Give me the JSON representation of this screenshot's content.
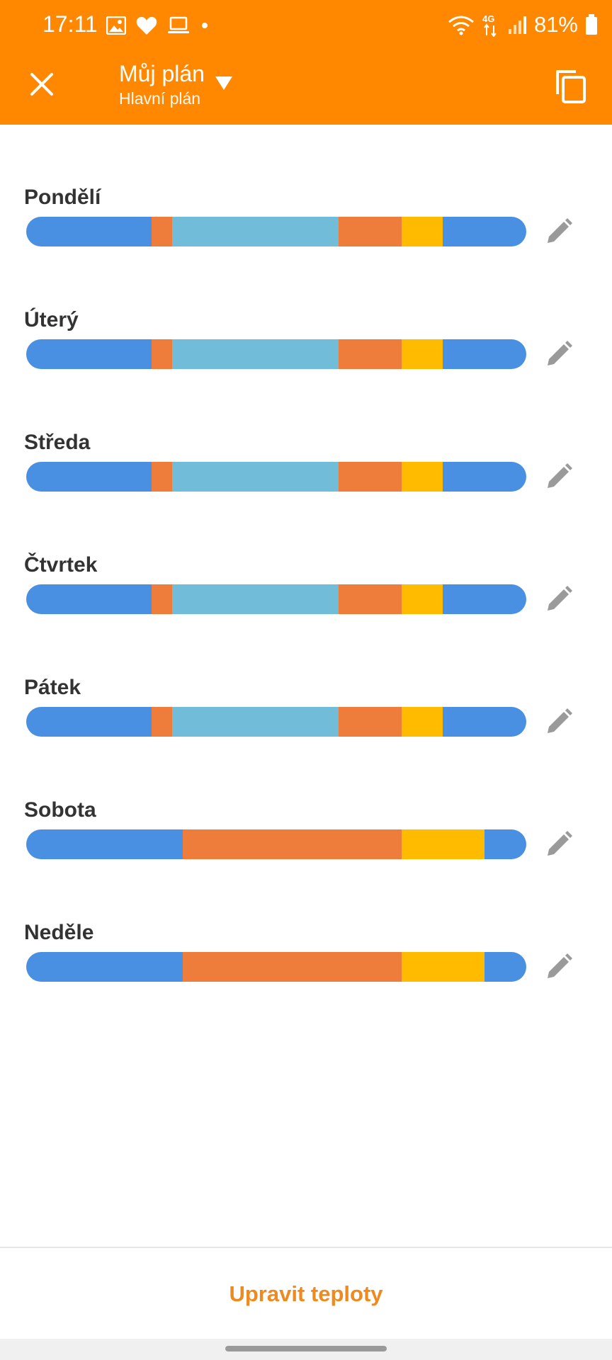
{
  "status_bar": {
    "time": "17:11",
    "battery": "81%",
    "network_label": "4G",
    "notification_icons": [
      "image-icon",
      "heart-icon",
      "laptop-icon",
      "dot-icon"
    ]
  },
  "header": {
    "title": "Můj plán",
    "subtitle": "Hlavní plán",
    "close_icon": "close-icon",
    "copy_icon": "copy-icon"
  },
  "colors": {
    "header": "#ff8800",
    "blue": "#4a90e2",
    "light_blue": "#71bcd9",
    "orange": "#ee7d3b",
    "yellow": "#ffbb00",
    "accent_text": "#ef8a1e",
    "edit_icon": "#9a9a9a"
  },
  "days": [
    {
      "label": "Pondělí",
      "segments": [
        {
          "color": "#4a90e2",
          "start": 0.0,
          "end": 0.25
        },
        {
          "color": "#ee7d3b",
          "start": 0.25,
          "end": 0.2917
        },
        {
          "color": "#71bcd9",
          "start": 0.2917,
          "end": 0.625
        },
        {
          "color": "#ee7d3b",
          "start": 0.625,
          "end": 0.75
        },
        {
          "color": "#ffbb00",
          "start": 0.75,
          "end": 0.8333
        },
        {
          "color": "#4a90e2",
          "start": 0.8333,
          "end": 1.0
        }
      ]
    },
    {
      "label": "Úterý",
      "segments": [
        {
          "color": "#4a90e2",
          "start": 0.0,
          "end": 0.25
        },
        {
          "color": "#ee7d3b",
          "start": 0.25,
          "end": 0.2917
        },
        {
          "color": "#71bcd9",
          "start": 0.2917,
          "end": 0.625
        },
        {
          "color": "#ee7d3b",
          "start": 0.625,
          "end": 0.75
        },
        {
          "color": "#ffbb00",
          "start": 0.75,
          "end": 0.8333
        },
        {
          "color": "#4a90e2",
          "start": 0.8333,
          "end": 1.0
        }
      ]
    },
    {
      "label": "Středa",
      "segments": [
        {
          "color": "#4a90e2",
          "start": 0.0,
          "end": 0.25
        },
        {
          "color": "#ee7d3b",
          "start": 0.25,
          "end": 0.2917
        },
        {
          "color": "#71bcd9",
          "start": 0.2917,
          "end": 0.625
        },
        {
          "color": "#ee7d3b",
          "start": 0.625,
          "end": 0.75
        },
        {
          "color": "#ffbb00",
          "start": 0.75,
          "end": 0.8333
        },
        {
          "color": "#4a90e2",
          "start": 0.8333,
          "end": 1.0
        }
      ]
    },
    {
      "label": "Čtvrtek",
      "segments": [
        {
          "color": "#4a90e2",
          "start": 0.0,
          "end": 0.25
        },
        {
          "color": "#ee7d3b",
          "start": 0.25,
          "end": 0.2917
        },
        {
          "color": "#71bcd9",
          "start": 0.2917,
          "end": 0.625
        },
        {
          "color": "#ee7d3b",
          "start": 0.625,
          "end": 0.75
        },
        {
          "color": "#ffbb00",
          "start": 0.75,
          "end": 0.8333
        },
        {
          "color": "#4a90e2",
          "start": 0.8333,
          "end": 1.0
        }
      ]
    },
    {
      "label": "Pátek",
      "segments": [
        {
          "color": "#4a90e2",
          "start": 0.0,
          "end": 0.25
        },
        {
          "color": "#ee7d3b",
          "start": 0.25,
          "end": 0.2917
        },
        {
          "color": "#71bcd9",
          "start": 0.2917,
          "end": 0.625
        },
        {
          "color": "#ee7d3b",
          "start": 0.625,
          "end": 0.75
        },
        {
          "color": "#ffbb00",
          "start": 0.75,
          "end": 0.8333
        },
        {
          "color": "#4a90e2",
          "start": 0.8333,
          "end": 1.0
        }
      ]
    },
    {
      "label": "Sobota",
      "segments": [
        {
          "color": "#4a90e2",
          "start": 0.0,
          "end": 0.3125
        },
        {
          "color": "#ee7d3b",
          "start": 0.3125,
          "end": 0.75
        },
        {
          "color": "#ffbb00",
          "start": 0.75,
          "end": 0.9167
        },
        {
          "color": "#4a90e2",
          "start": 0.9167,
          "end": 1.0
        }
      ]
    },
    {
      "label": "Neděle",
      "segments": [
        {
          "color": "#4a90e2",
          "start": 0.0,
          "end": 0.3125
        },
        {
          "color": "#ee7d3b",
          "start": 0.3125,
          "end": 0.75
        },
        {
          "color": "#ffbb00",
          "start": 0.75,
          "end": 0.9167
        },
        {
          "color": "#4a90e2",
          "start": 0.9167,
          "end": 1.0
        }
      ]
    }
  ],
  "edit_icon": "pencil-icon",
  "footer": {
    "button_label": "Upravit teploty"
  }
}
